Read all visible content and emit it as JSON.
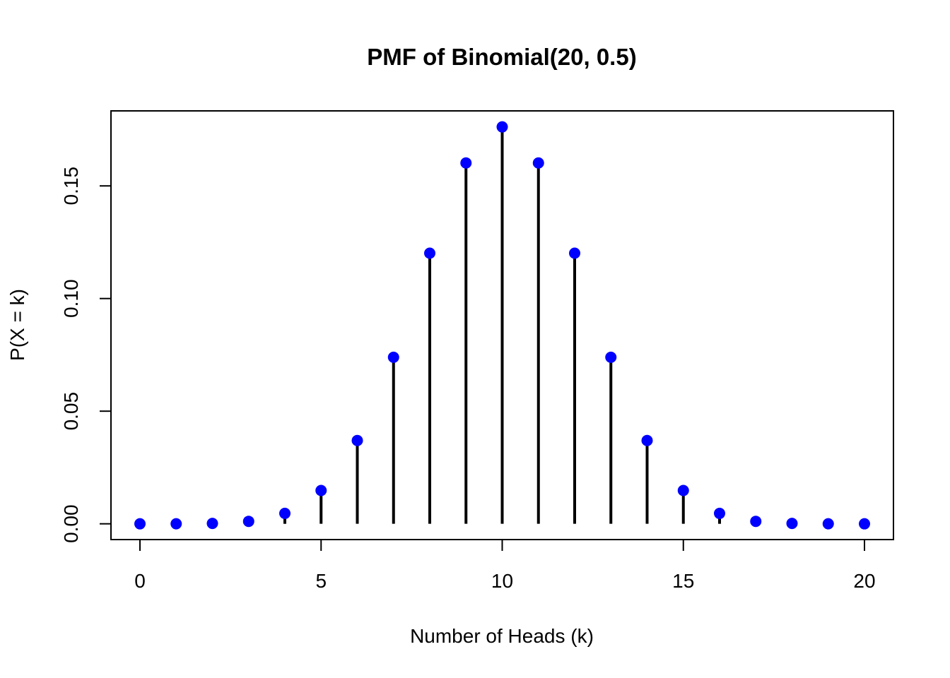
{
  "chart_data": {
    "type": "scatter",
    "title": "PMF of Binomial(20, 0.5)",
    "xlabel": "Number of Heads (k)",
    "ylabel": "P(X = k)",
    "x": [
      0,
      1,
      2,
      3,
      4,
      5,
      6,
      7,
      8,
      9,
      10,
      11,
      12,
      13,
      14,
      15,
      16,
      17,
      18,
      19,
      20
    ],
    "y": [
      1e-06,
      1.9e-05,
      0.000181,
      0.001087,
      0.004621,
      0.014786,
      0.036964,
      0.073929,
      0.120134,
      0.160179,
      0.176197,
      0.160179,
      0.120134,
      0.073929,
      0.036964,
      0.014786,
      0.004621,
      0.001087,
      0.000181,
      1.9e-05,
      1e-06
    ],
    "xlim": [
      -0.8,
      20.8
    ],
    "ylim": [
      -0.007,
      0.1833
    ],
    "xticks": [
      0,
      5,
      10,
      15,
      20
    ],
    "xtick_labels": [
      "0",
      "5",
      "10",
      "15",
      "20"
    ],
    "yticks": [
      0,
      0.05,
      0.1,
      0.15
    ],
    "ytick_labels": [
      "0.00",
      "0.05",
      "0.10",
      "0.15"
    ],
    "stem_color": "#000000",
    "point_color": "#0000ff",
    "grid": false,
    "legend": "none"
  }
}
